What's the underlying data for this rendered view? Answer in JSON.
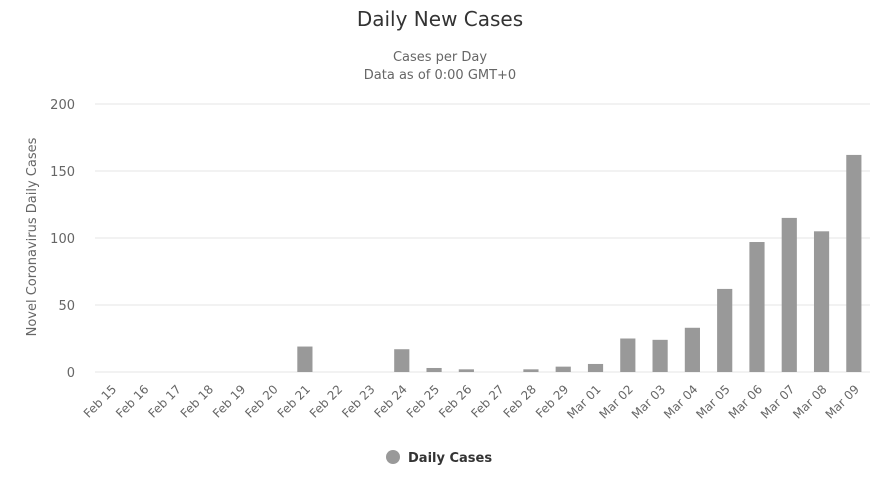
{
  "chart_data": {
    "type": "bar",
    "title": "Daily New Cases",
    "subtitle_lines": [
      "Cases per Day",
      "Data as of 0:00 GMT+0"
    ],
    "xlabel": "",
    "ylabel": "Novel Coronavirus Daily Cases",
    "ylim": [
      0,
      200
    ],
    "yticks": [
      0,
      50,
      100,
      150,
      200
    ],
    "grid": true,
    "legend_position": "bottom-center",
    "categories": [
      "Feb 15",
      "Feb 16",
      "Feb 17",
      "Feb 18",
      "Feb 19",
      "Feb 20",
      "Feb 21",
      "Feb 22",
      "Feb 23",
      "Feb 24",
      "Feb 25",
      "Feb 26",
      "Feb 27",
      "Feb 28",
      "Feb 29",
      "Mar 01",
      "Mar 02",
      "Mar 03",
      "Mar 04",
      "Mar 05",
      "Mar 06",
      "Mar 07",
      "Mar 08",
      "Mar 09"
    ],
    "series": [
      {
        "name": "Daily Cases",
        "color": "#999999",
        "values": [
          0,
          0,
          0,
          0,
          0,
          0,
          19,
          0,
          0,
          17,
          3,
          2,
          0,
          2,
          4,
          6,
          25,
          24,
          33,
          62,
          97,
          115,
          105,
          162
        ]
      }
    ]
  },
  "colors": {
    "bar": "#999999",
    "grid": "#e6e6e6",
    "axis_text": "#666666",
    "title_text": "#333333"
  }
}
